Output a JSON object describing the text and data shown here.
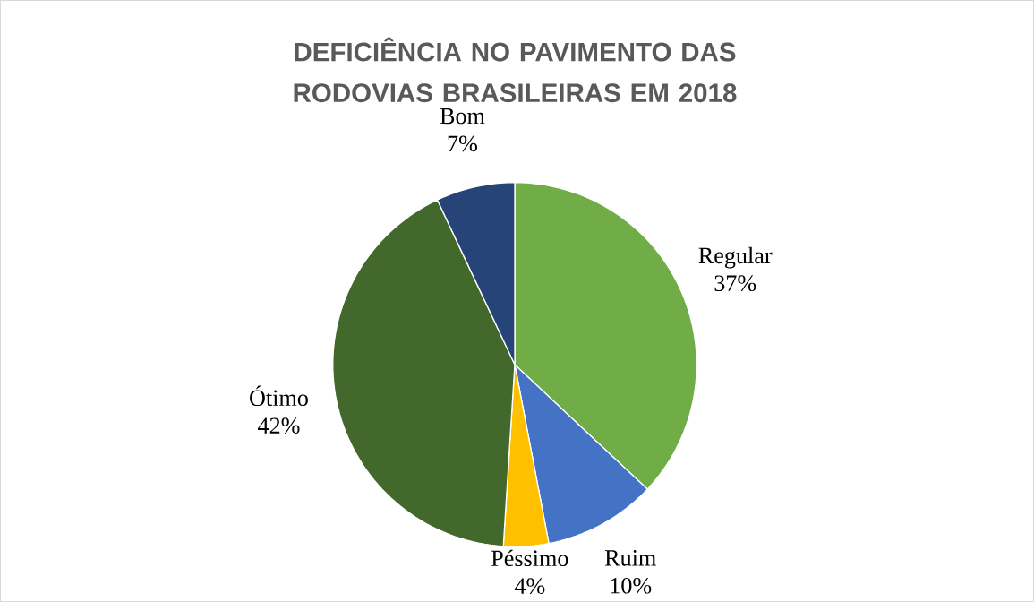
{
  "chart_data": {
    "type": "pie",
    "title": "DEFICIÊNCIA NO PAVIMENTO DAS RODOVIAS BRASILEIRAS EM 2018",
    "categories": [
      "Regular",
      "Ruim",
      "Péssimo",
      "Ótimo",
      "Bom"
    ],
    "values": [
      37,
      10,
      4,
      42,
      7
    ],
    "value_labels": [
      "37%",
      "10%",
      "4%",
      "42%",
      "7%"
    ],
    "colors": [
      "#70ad47",
      "#4472c4",
      "#ffc000",
      "#43682b",
      "#264478"
    ]
  }
}
